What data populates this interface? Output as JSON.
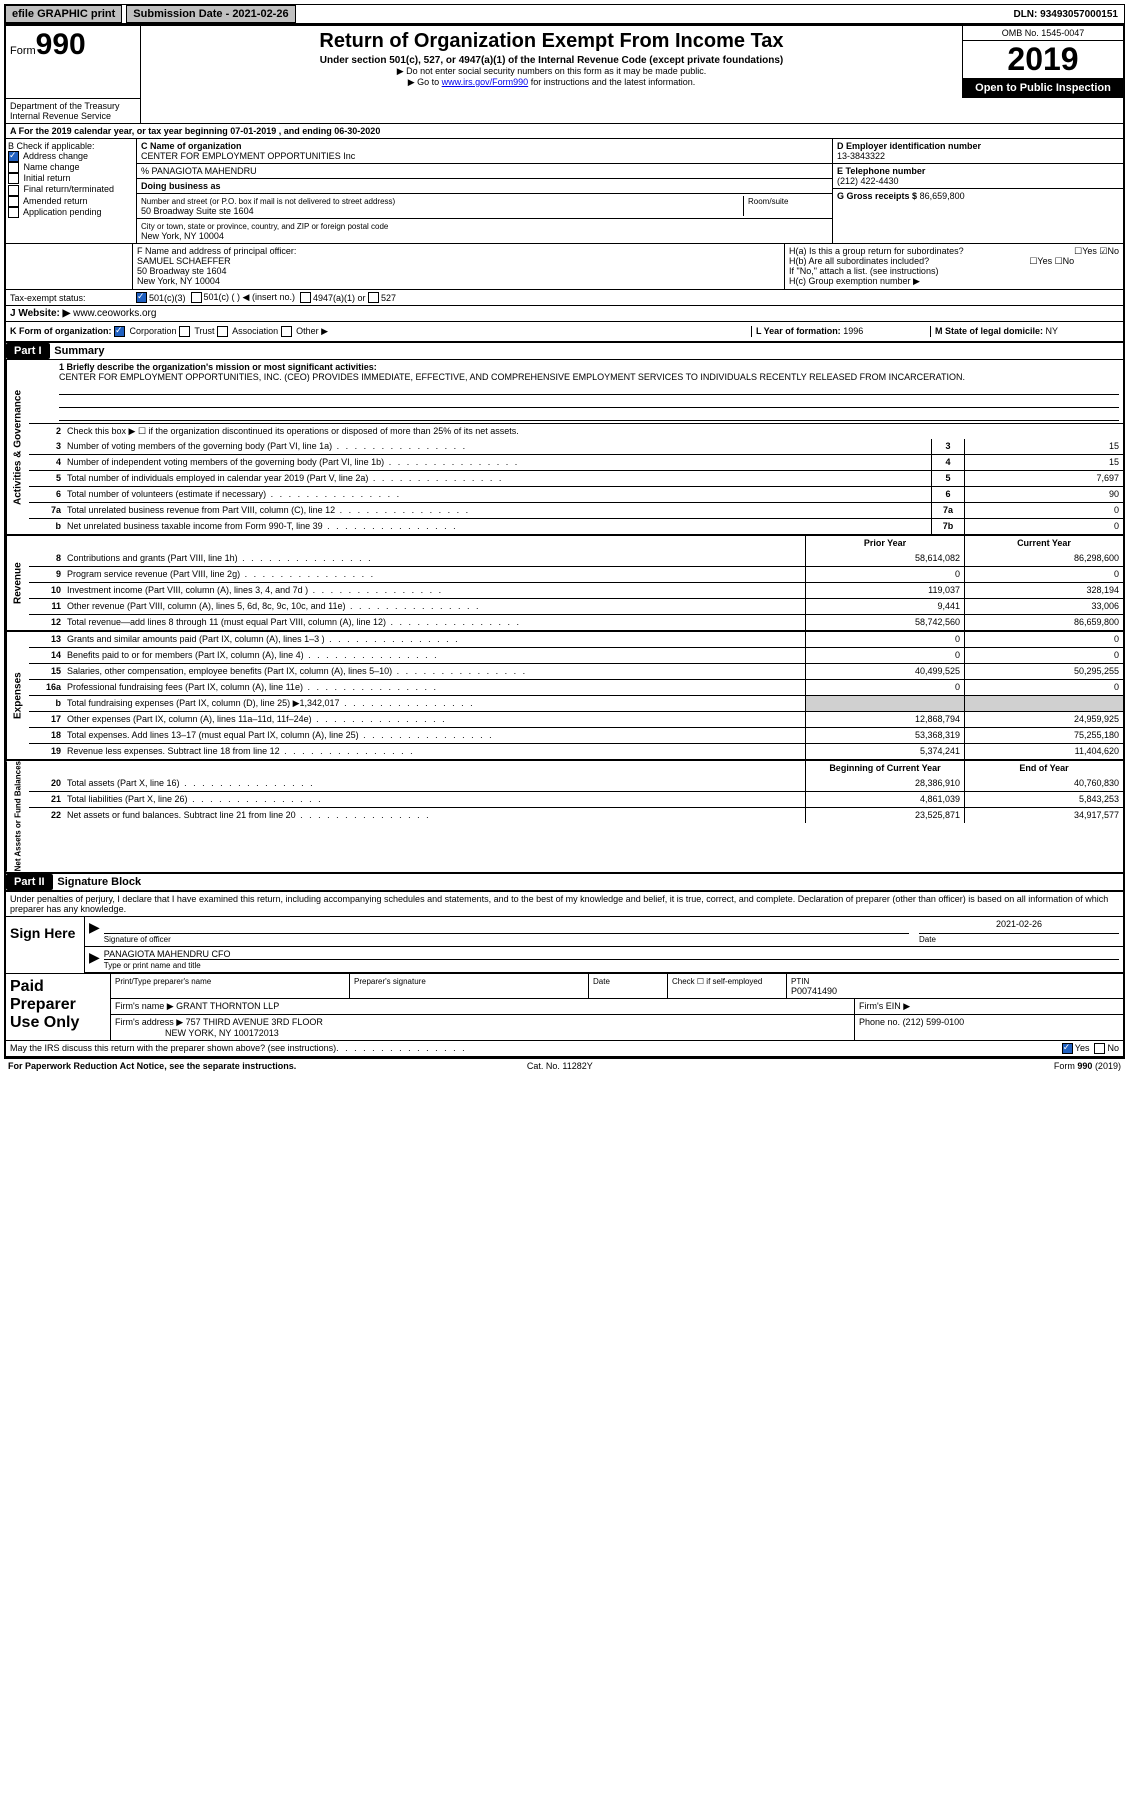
{
  "topbar": {
    "efile": "efile GRAPHIC print",
    "submission_label": "Submission Date - 2021-02-26",
    "dln": "DLN: 93493057000151"
  },
  "header": {
    "form_prefix": "Form",
    "form_number": "990",
    "title": "Return of Organization Exempt From Income Tax",
    "subtitle": "Under section 501(c), 527, or 4947(a)(1) of the Internal Revenue Code (except private foundations)",
    "note1": "▶ Do not enter social security numbers on this form as it may be made public.",
    "note2_pre": "▶ Go to ",
    "note2_link": "www.irs.gov/Form990",
    "note2_post": " for instructions and the latest information.",
    "dept": "Department of the Treasury\nInternal Revenue Service",
    "omb": "OMB No. 1545-0047",
    "year": "2019",
    "open_public": "Open to Public Inspection"
  },
  "line_a": "A For the 2019 calendar year, or tax year beginning 07-01-2019   , and ending 06-30-2020",
  "box_b": {
    "label": "B Check if applicable:",
    "items": [
      "Address change",
      "Name change",
      "Initial return",
      "Final return/terminated",
      "Amended return",
      "Application pending"
    ],
    "checked_idx": 0
  },
  "box_c": {
    "label": "C Name of organization",
    "org": "CENTER FOR EMPLOYMENT OPPORTUNITIES Inc",
    "care_of": "% PANAGIOTA MAHENDRU",
    "dba_label": "Doing business as",
    "addr_label": "Number and street (or P.O. box if mail is not delivered to street address)",
    "room_label": "Room/suite",
    "addr": "50 Broadway Suite ste 1604",
    "city_label": "City or town, state or province, country, and ZIP or foreign postal code",
    "city": "New York, NY  10004"
  },
  "box_d": {
    "label": "D Employer identification number",
    "value": "13-3843322"
  },
  "box_e": {
    "label": "E Telephone number",
    "value": "(212) 422-4430"
  },
  "box_g": {
    "label": "G Gross receipts $",
    "value": "86,659,800"
  },
  "box_f": {
    "label": "F Name and address of principal officer:",
    "name": "SAMUEL SCHAEFFER",
    "addr1": "50 Broadway ste 1604",
    "addr2": "New York, NY  10004"
  },
  "box_h": {
    "a": "H(a)  Is this a group return for subordinates?",
    "b": "H(b)  Are all subordinates included?",
    "note": "If \"No,\" attach a list. (see instructions)",
    "c": "H(c)  Group exemption number ▶"
  },
  "tax_exempt": {
    "label": "Tax-exempt status:",
    "opt1": "501(c)(3)",
    "opt2": "501(c) (   ) ◀ (insert no.)",
    "opt3": "4947(a)(1) or",
    "opt4": "527"
  },
  "website": {
    "label": "J   Website: ▶",
    "value": "www.ceoworks.org"
  },
  "row_k": {
    "label": "K Form of organization:",
    "opts": [
      "Corporation",
      "Trust",
      "Association",
      "Other ▶"
    ],
    "l_label": "L Year of formation:",
    "l_value": "1996",
    "m_label": "M State of legal domicile:",
    "m_value": "NY"
  },
  "part1": {
    "hdr": "Part I",
    "title": "Summary",
    "line1_label": "1  Briefly describe the organization's mission or most significant activities:",
    "mission": "CENTER FOR EMPLOYMENT OPPORTUNITIES, INC. (CEO) PROVIDES IMMEDIATE, EFFECTIVE, AND COMPREHENSIVE EMPLOYMENT SERVICES TO INDIVIDUALS RECENTLY RELEASED FROM INCARCERATION.",
    "line2": "Check this box ▶ ☐ if the organization discontinued its operations or disposed of more than 25% of its net assets.",
    "governance": [
      {
        "n": "3",
        "t": "Number of voting members of the governing body (Part VI, line 1a)",
        "b": "3",
        "v": "15"
      },
      {
        "n": "4",
        "t": "Number of independent voting members of the governing body (Part VI, line 1b)",
        "b": "4",
        "v": "15"
      },
      {
        "n": "5",
        "t": "Total number of individuals employed in calendar year 2019 (Part V, line 2a)",
        "b": "5",
        "v": "7,697"
      },
      {
        "n": "6",
        "t": "Total number of volunteers (estimate if necessary)",
        "b": "6",
        "v": "90"
      },
      {
        "n": "7a",
        "t": "Total unrelated business revenue from Part VIII, column (C), line 12",
        "b": "7a",
        "v": "0"
      },
      {
        "n": "b",
        "t": "Net unrelated business taxable income from Form 990-T, line 39",
        "b": "7b",
        "v": "0"
      }
    ],
    "col_prior": "Prior Year",
    "col_current": "Current Year",
    "revenue": [
      {
        "n": "8",
        "t": "Contributions and grants (Part VIII, line 1h)",
        "p": "58,614,082",
        "c": "86,298,600"
      },
      {
        "n": "9",
        "t": "Program service revenue (Part VIII, line 2g)",
        "p": "0",
        "c": "0"
      },
      {
        "n": "10",
        "t": "Investment income (Part VIII, column (A), lines 3, 4, and 7d )",
        "p": "119,037",
        "c": "328,194"
      },
      {
        "n": "11",
        "t": "Other revenue (Part VIII, column (A), lines 5, 6d, 8c, 9c, 10c, and 11e)",
        "p": "9,441",
        "c": "33,006"
      },
      {
        "n": "12",
        "t": "Total revenue—add lines 8 through 11 (must equal Part VIII, column (A), line 12)",
        "p": "58,742,560",
        "c": "86,659,800"
      }
    ],
    "expenses": [
      {
        "n": "13",
        "t": "Grants and similar amounts paid (Part IX, column (A), lines 1–3 )",
        "p": "0",
        "c": "0"
      },
      {
        "n": "14",
        "t": "Benefits paid to or for members (Part IX, column (A), line 4)",
        "p": "0",
        "c": "0"
      },
      {
        "n": "15",
        "t": "Salaries, other compensation, employee benefits (Part IX, column (A), lines 5–10)",
        "p": "40,499,525",
        "c": "50,295,255"
      },
      {
        "n": "16a",
        "t": "Professional fundraising fees (Part IX, column (A), line 11e)",
        "p": "0",
        "c": "0"
      },
      {
        "n": "b",
        "t": "Total fundraising expenses (Part IX, column (D), line 25) ▶1,342,017",
        "p": "",
        "c": "",
        "shade": true
      },
      {
        "n": "17",
        "t": "Other expenses (Part IX, column (A), lines 11a–11d, 11f–24e)",
        "p": "12,868,794",
        "c": "24,959,925"
      },
      {
        "n": "18",
        "t": "Total expenses. Add lines 13–17 (must equal Part IX, column (A), line 25)",
        "p": "53,368,319",
        "c": "75,255,180"
      },
      {
        "n": "19",
        "t": "Revenue less expenses. Subtract line 18 from line 12",
        "p": "5,374,241",
        "c": "11,404,620"
      }
    ],
    "col_begin": "Beginning of Current Year",
    "col_end": "End of Year",
    "netassets": [
      {
        "n": "20",
        "t": "Total assets (Part X, line 16)",
        "p": "28,386,910",
        "c": "40,760,830"
      },
      {
        "n": "21",
        "t": "Total liabilities (Part X, line 26)",
        "p": "4,861,039",
        "c": "5,843,253"
      },
      {
        "n": "22",
        "t": "Net assets or fund balances. Subtract line 21 from line 20",
        "p": "23,525,871",
        "c": "34,917,577"
      }
    ],
    "side_gov": "Activities & Governance",
    "side_rev": "Revenue",
    "side_exp": "Expenses",
    "side_net": "Net Assets or Fund Balances"
  },
  "part2": {
    "hdr": "Part II",
    "title": "Signature Block",
    "decl": "Under penalties of perjury, I declare that I have examined this return, including accompanying schedules and statements, and to the best of my knowledge and belief, it is true, correct, and complete. Declaration of preparer (other than officer) is based on all information of which preparer has any knowledge.",
    "sign_here": "Sign Here",
    "sig_officer": "Signature of officer",
    "sig_date_label": "Date",
    "sig_date": "2021-02-26",
    "officer_name": "PANAGIOTA MAHENDRU  CFO",
    "officer_type": "Type or print name and title",
    "paid_prep": "Paid Preparer Use Only",
    "prep_name_label": "Print/Type preparer's name",
    "prep_sig_label": "Preparer's signature",
    "date_label": "Date",
    "check_self": "Check ☐ if self-employed",
    "ptin_label": "PTIN",
    "ptin": "P00741490",
    "firm_name_label": "Firm's name   ▶",
    "firm_name": "GRANT THORNTON LLP",
    "firm_ein_label": "Firm's EIN ▶",
    "firm_addr_label": "Firm's address ▶",
    "firm_addr1": "757 THIRD AVENUE 3RD FLOOR",
    "firm_addr2": "NEW YORK, NY  100172013",
    "phone_label": "Phone no.",
    "phone": "(212) 599-0100",
    "discuss": "May the IRS discuss this return with the preparer shown above? (see instructions)",
    "yes": "Yes",
    "no": "No"
  },
  "footer": {
    "left": "For Paperwork Reduction Act Notice, see the separate instructions.",
    "mid": "Cat. No. 11282Y",
    "right": "Form 990 (2019)"
  }
}
